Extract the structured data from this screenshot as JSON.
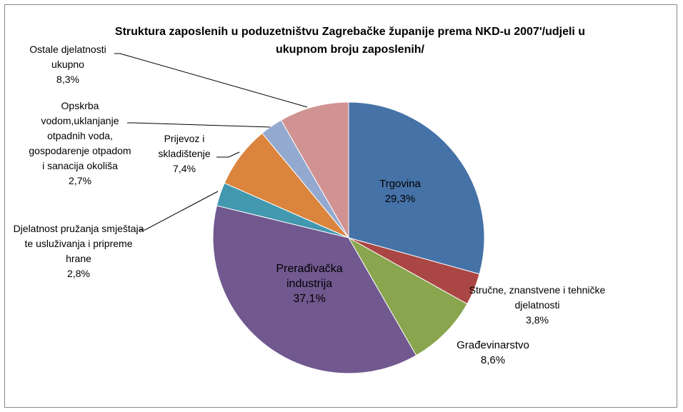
{
  "chart_data": {
    "type": "pie",
    "title": "Struktura zaposlenih u poduzetništvu Zagrebačke županije prema NKD-u 2007'/udjeli u ukupnom broju zaposlenih/",
    "categories": [
      "Trgovina",
      "Stručne, znanstvene i tehničke djelatnosti",
      "Građevinarstvo",
      "Prerađivačka industrija",
      "Djelatnost pružanja smještaja te usluživanja i pripreme hrane",
      "Prijevoz i skladištenje",
      "Opskrba vodom,uklanjanje otpadnih voda, gospodarenje otpadom i sanacija okoliša",
      "Ostale djelatnosti ukupno"
    ],
    "values": [
      29.3,
      3.8,
      8.6,
      37.1,
      2.8,
      7.4,
      2.7,
      8.3
    ],
    "value_labels": [
      "29,3%",
      "3,8%",
      "8,6%",
      "37,1%",
      "2,8%",
      "7,4%",
      "2,7%",
      "8,3%"
    ],
    "colors": [
      "#4572a7",
      "#aa4643",
      "#89a54e",
      "#71588f",
      "#4198af",
      "#db843d",
      "#93a9cf",
      "#d19392"
    ]
  }
}
